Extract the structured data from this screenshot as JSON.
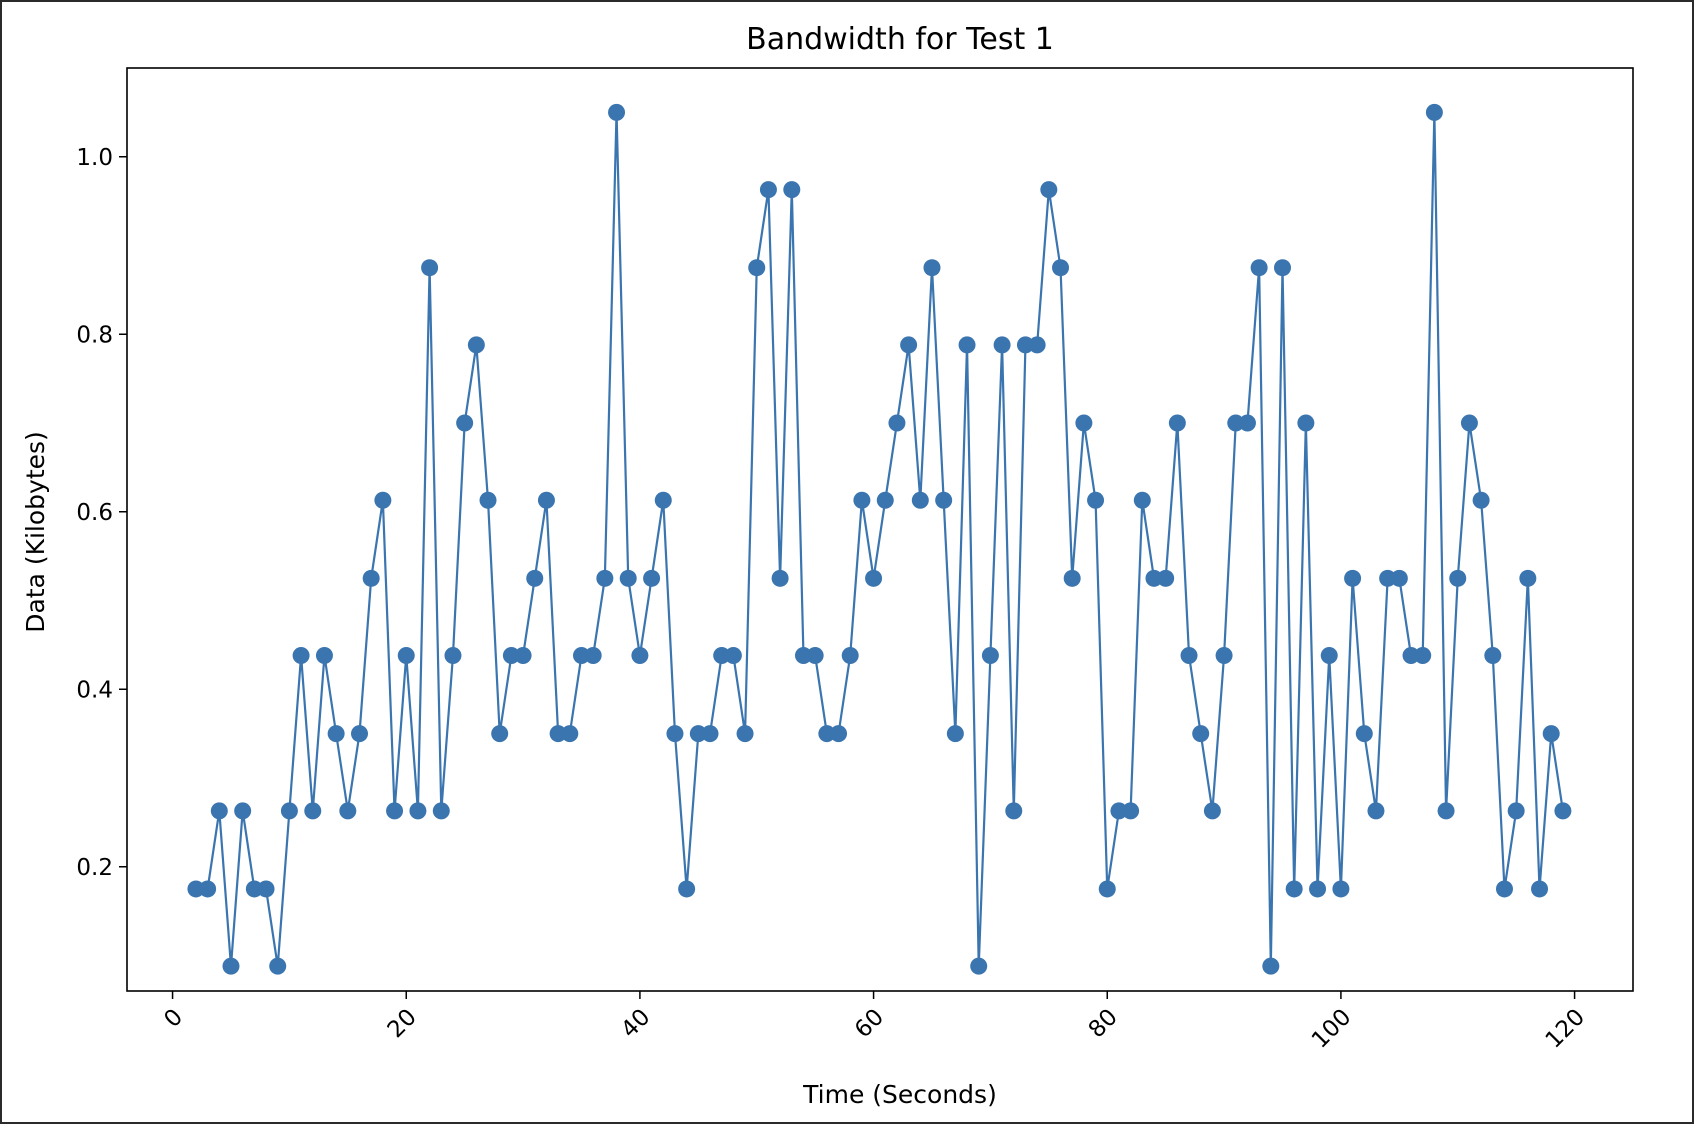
{
  "chart_data": {
    "type": "line",
    "title": "Bandwidth for Test 1",
    "xlabel": "Time (Seconds)",
    "ylabel": "Data (Kilobytes)",
    "xlim": [
      -3.9,
      125
    ],
    "ylim": [
      0.06,
      1.1
    ],
    "xticks": [
      0,
      20,
      40,
      60,
      80,
      100,
      120
    ],
    "yticks": [
      0.2,
      0.4,
      0.6,
      0.8,
      1.0
    ],
    "xtick_labels": [
      "0",
      "20",
      "40",
      "60",
      "80",
      "100",
      "120"
    ],
    "ytick_labels": [
      "0.2",
      "0.4",
      "0.6",
      "0.8",
      "1.0"
    ],
    "grid": false,
    "series": [
      {
        "name": "Bandwidth",
        "color": "#3b75af",
        "marker": "circle",
        "x": [
          2,
          3,
          4,
          5,
          6,
          7,
          8,
          9,
          10,
          11,
          12,
          13,
          14,
          15,
          16,
          17,
          18,
          19,
          20,
          21,
          22,
          23,
          24,
          25,
          26,
          27,
          28,
          29,
          30,
          31,
          32,
          33,
          34,
          35,
          36,
          37,
          38,
          39,
          40,
          41,
          42,
          43,
          44,
          45,
          46,
          47,
          48,
          49,
          50,
          51,
          52,
          53,
          54,
          55,
          56,
          57,
          58,
          59,
          60,
          61,
          62,
          63,
          64,
          65,
          66,
          67,
          68,
          69,
          70,
          71,
          72,
          73,
          74,
          75,
          76,
          77,
          78,
          79,
          80,
          81,
          82,
          83,
          84,
          85,
          86,
          87,
          88,
          89,
          90,
          91,
          92,
          93,
          94,
          95,
          96,
          97,
          98,
          99,
          100,
          101,
          102,
          103,
          104,
          105,
          106,
          107,
          108,
          109,
          110,
          111,
          112,
          113,
          114,
          115,
          116,
          117,
          118,
          119
        ],
        "values": [
          0.175,
          0.175,
          0.263,
          0.088,
          0.263,
          0.175,
          0.175,
          0.088,
          0.263,
          0.438,
          0.263,
          0.438,
          0.35,
          0.263,
          0.35,
          0.525,
          0.613,
          0.263,
          0.438,
          0.263,
          0.875,
          0.263,
          0.438,
          0.7,
          0.788,
          0.613,
          0.35,
          0.438,
          0.438,
          0.525,
          0.613,
          0.35,
          0.35,
          0.438,
          0.438,
          0.525,
          1.05,
          0.525,
          0.438,
          0.525,
          0.613,
          0.35,
          0.175,
          0.35,
          0.35,
          0.438,
          0.438,
          0.35,
          0.875,
          0.963,
          0.525,
          0.963,
          0.438,
          0.438,
          0.35,
          0.35,
          0.438,
          0.613,
          0.525,
          0.613,
          0.7,
          0.788,
          0.613,
          0.875,
          0.613,
          0.35,
          0.788,
          0.088,
          0.438,
          0.788,
          0.263,
          0.788,
          0.788,
          0.963,
          0.875,
          0.525,
          0.7,
          0.613,
          0.175,
          0.263,
          0.263,
          0.613,
          0.525,
          0.525,
          0.7,
          0.438,
          0.35,
          0.263,
          0.438,
          0.7,
          0.7,
          0.875,
          0.088,
          0.875,
          0.175,
          0.7,
          0.175,
          0.438,
          0.175,
          0.525,
          0.35,
          0.263,
          0.525,
          0.525,
          0.438,
          0.438,
          1.05,
          0.263,
          0.525,
          0.7,
          0.613,
          0.438,
          0.175,
          0.263,
          0.525,
          0.175,
          0.35,
          0.263
        ]
      }
    ]
  }
}
